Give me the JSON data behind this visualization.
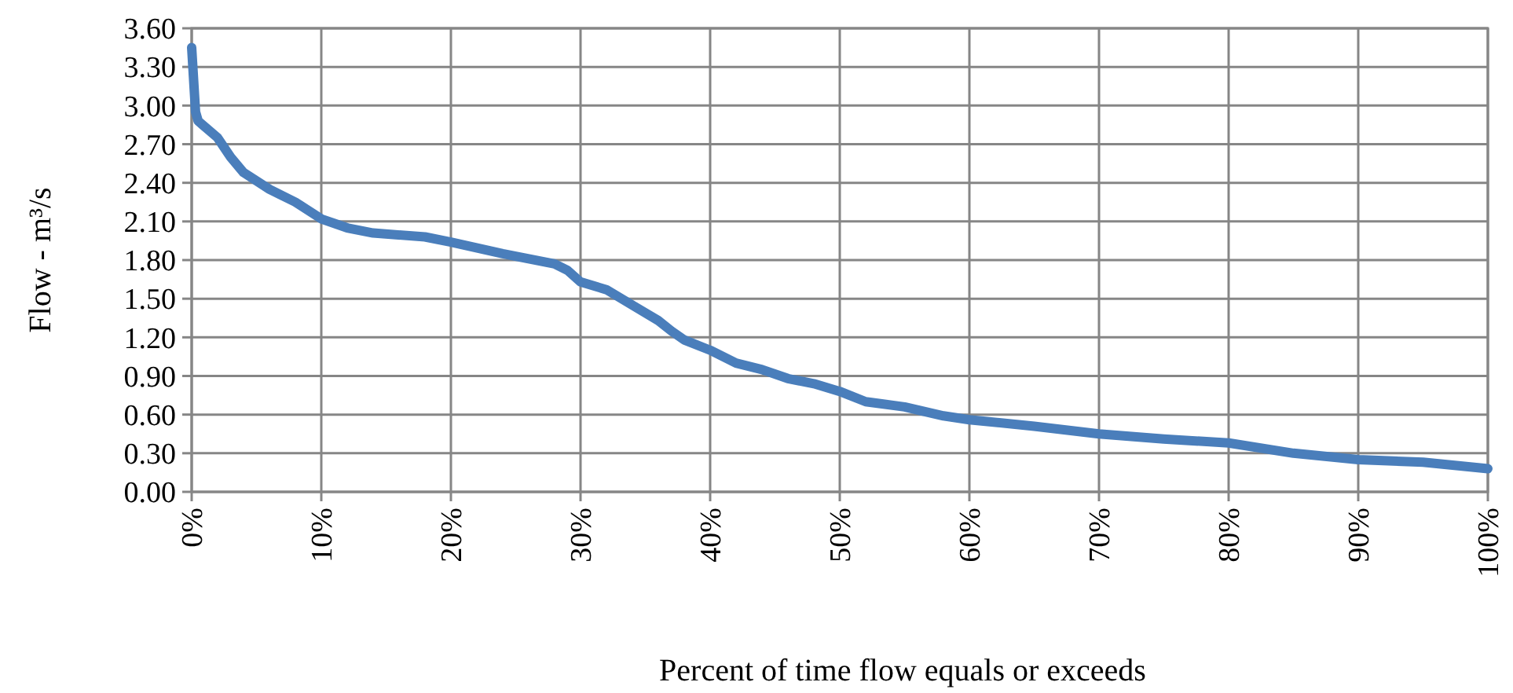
{
  "chart_data": {
    "type": "line",
    "xlabel": "Percent of time flow equals or exceeds",
    "ylabel": "Flow - m³/s",
    "x": [
      0,
      0.3,
      0.5,
      2,
      3,
      4,
      6,
      8,
      10,
      12,
      14,
      18,
      20,
      24,
      28,
      29,
      30,
      32,
      34,
      36,
      37,
      38,
      40,
      42,
      44,
      46,
      48,
      50,
      52,
      55,
      58,
      60,
      65,
      70,
      75,
      80,
      85,
      90,
      95,
      100
    ],
    "series": [
      {
        "color": "#4a7ebb",
        "values": [
          3.45,
          2.95,
          2.88,
          2.75,
          2.6,
          2.48,
          2.35,
          2.25,
          2.12,
          2.05,
          2.01,
          1.98,
          1.94,
          1.85,
          1.77,
          1.72,
          1.63,
          1.57,
          1.45,
          1.33,
          1.25,
          1.18,
          1.1,
          1.0,
          0.95,
          0.88,
          0.84,
          0.78,
          0.7,
          0.66,
          0.59,
          0.56,
          0.51,
          0.45,
          0.41,
          0.38,
          0.3,
          0.25,
          0.23,
          0.18
        ]
      }
    ],
    "xlim": [
      0,
      100
    ],
    "xticks": [
      {
        "value": 0,
        "label": "0%"
      },
      {
        "value": 10,
        "label": "10%"
      },
      {
        "value": 20,
        "label": "20%"
      },
      {
        "value": 30,
        "label": "30%"
      },
      {
        "value": 40,
        "label": "40%"
      },
      {
        "value": 50,
        "label": "50%"
      },
      {
        "value": 60,
        "label": "60%"
      },
      {
        "value": 70,
        "label": "70%"
      },
      {
        "value": 80,
        "label": "80%"
      },
      {
        "value": 90,
        "label": "90%"
      },
      {
        "value": 100,
        "label": "100%"
      }
    ],
    "ylim": [
      0,
      3.6
    ],
    "yticks": [
      {
        "value": 0,
        "label": "0.00"
      },
      {
        "value": 0.3,
        "label": "0.30"
      },
      {
        "value": 0.6,
        "label": "0.60"
      },
      {
        "value": 0.9,
        "label": "0.90"
      },
      {
        "value": 1.2,
        "label": "1.20"
      },
      {
        "value": 1.5,
        "label": "1.50"
      },
      {
        "value": 1.8,
        "label": "1.80"
      },
      {
        "value": 2.1,
        "label": "2.10"
      },
      {
        "value": 2.4,
        "label": "2.40"
      },
      {
        "value": 2.7,
        "label": "2.70"
      },
      {
        "value": 3.0,
        "label": "3.00"
      },
      {
        "value": 3.3,
        "label": "3.30"
      },
      {
        "value": 3.6,
        "label": "3.60"
      }
    ],
    "grid": true,
    "marker": "none",
    "line_style": "solid"
  }
}
